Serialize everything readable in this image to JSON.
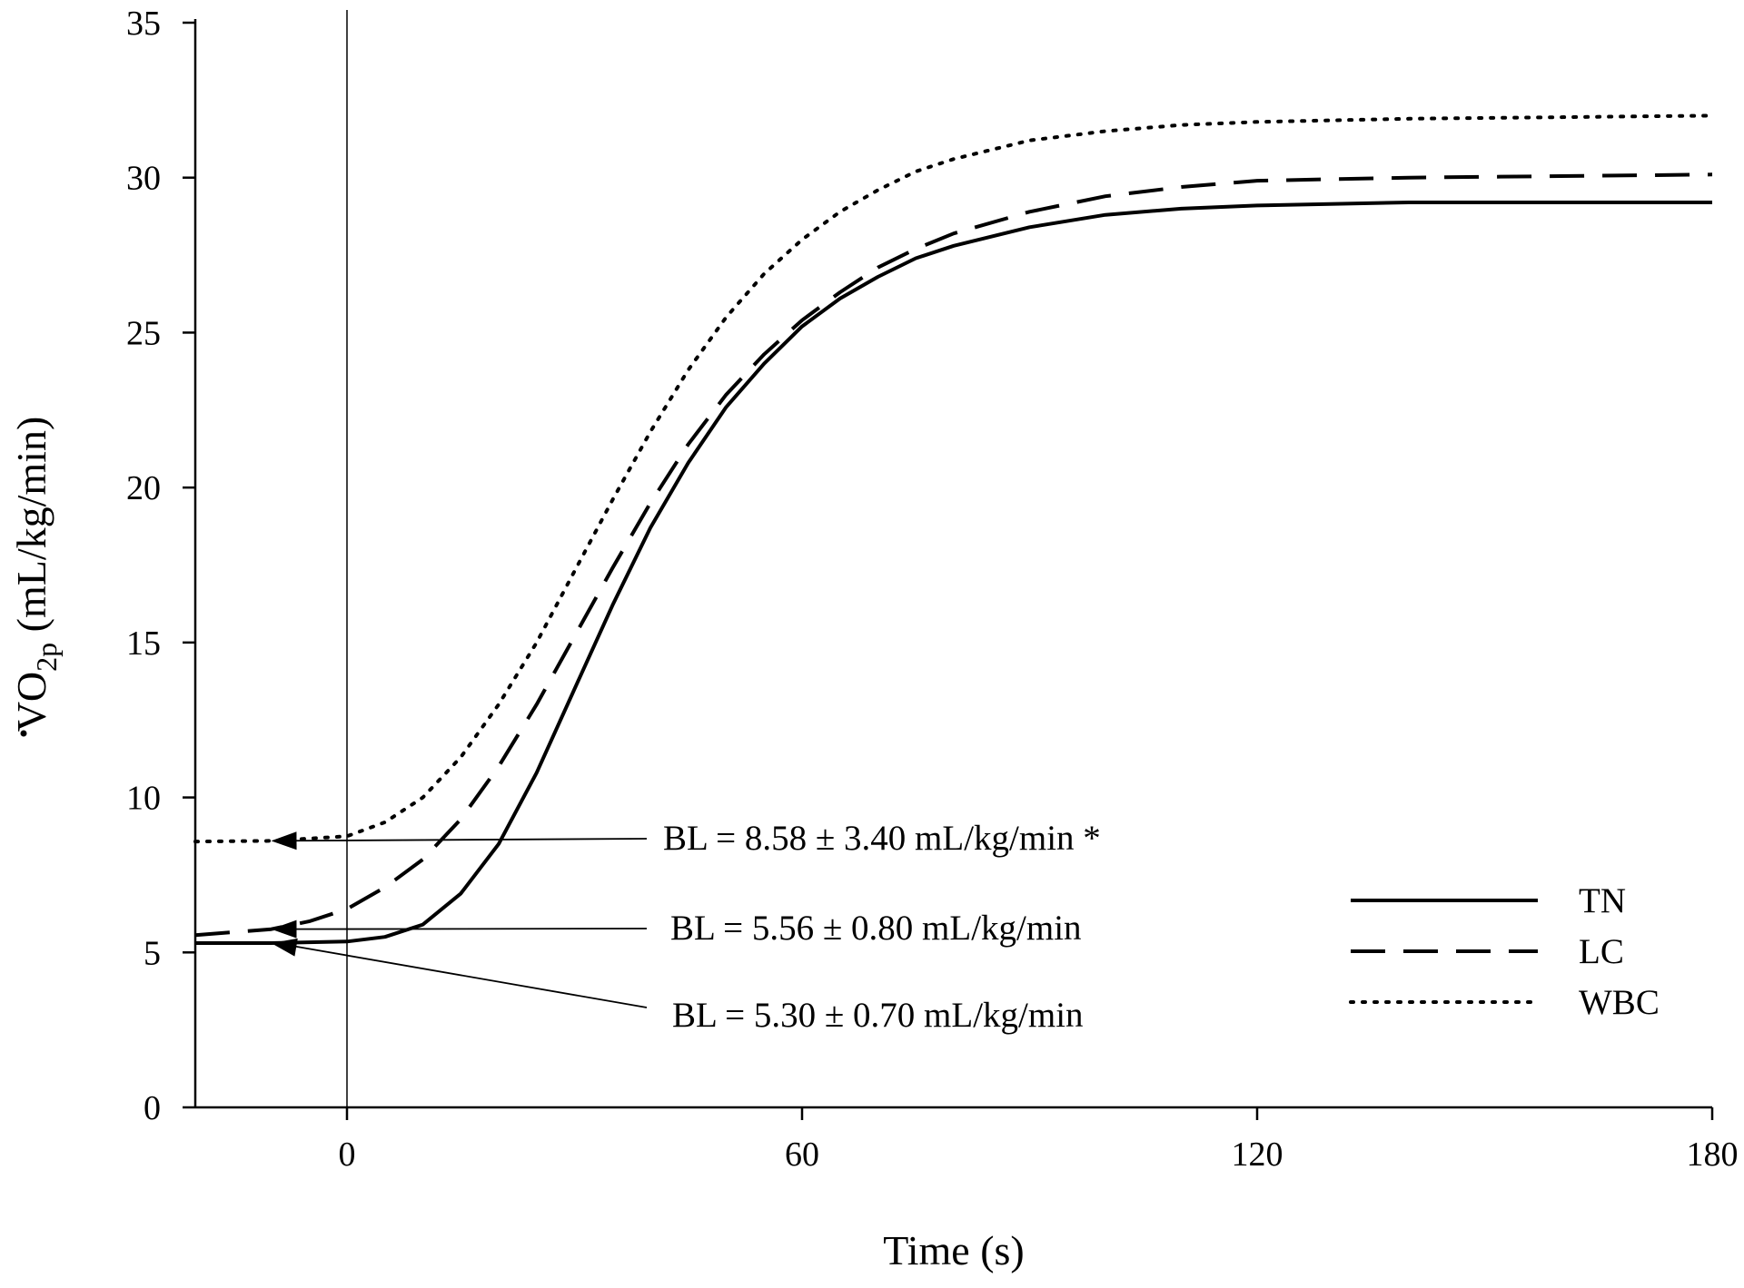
{
  "chart_data": {
    "type": "line",
    "title": "",
    "xlabel": "Time (s)",
    "ylabel": {
      "main": "VO",
      "sub": "2p",
      "unit": " (mL/kg/min)"
    },
    "xlim": [
      -20,
      180
    ],
    "ylim": [
      0,
      35
    ],
    "xticks": [
      0,
      60,
      120,
      180
    ],
    "yticks": [
      0,
      5,
      10,
      15,
      20,
      25,
      30,
      35
    ],
    "grid": false,
    "vline_x": 0,
    "legend_position": "bottom-right",
    "series": [
      {
        "name": "TN",
        "style": "solid",
        "points": [
          [
            -20,
            5.3
          ],
          [
            -10,
            5.3
          ],
          [
            0,
            5.35
          ],
          [
            5,
            5.5
          ],
          [
            10,
            5.9
          ],
          [
            15,
            6.9
          ],
          [
            20,
            8.5
          ],
          [
            25,
            10.8
          ],
          [
            30,
            13.5
          ],
          [
            35,
            16.2
          ],
          [
            40,
            18.7
          ],
          [
            45,
            20.8
          ],
          [
            50,
            22.6
          ],
          [
            55,
            24.0
          ],
          [
            60,
            25.2
          ],
          [
            65,
            26.1
          ],
          [
            70,
            26.8
          ],
          [
            75,
            27.4
          ],
          [
            80,
            27.8
          ],
          [
            90,
            28.4
          ],
          [
            100,
            28.8
          ],
          [
            110,
            29.0
          ],
          [
            120,
            29.1
          ],
          [
            140,
            29.2
          ],
          [
            160,
            29.2
          ],
          [
            180,
            29.2
          ]
        ]
      },
      {
        "name": "LC",
        "style": "dashed",
        "points": [
          [
            -20,
            5.56
          ],
          [
            -10,
            5.75
          ],
          [
            -5,
            6.0
          ],
          [
            0,
            6.4
          ],
          [
            5,
            7.1
          ],
          [
            10,
            8.0
          ],
          [
            15,
            9.3
          ],
          [
            20,
            11.0
          ],
          [
            25,
            13.0
          ],
          [
            30,
            15.2
          ],
          [
            35,
            17.4
          ],
          [
            40,
            19.5
          ],
          [
            45,
            21.4
          ],
          [
            50,
            23.0
          ],
          [
            55,
            24.3
          ],
          [
            60,
            25.4
          ],
          [
            65,
            26.3
          ],
          [
            70,
            27.1
          ],
          [
            75,
            27.7
          ],
          [
            80,
            28.2
          ],
          [
            90,
            28.9
          ],
          [
            100,
            29.4
          ],
          [
            110,
            29.7
          ],
          [
            120,
            29.9
          ],
          [
            140,
            30.0
          ],
          [
            160,
            30.05
          ],
          [
            180,
            30.1
          ]
        ]
      },
      {
        "name": "WBC",
        "style": "dotted",
        "points": [
          [
            -20,
            8.58
          ],
          [
            -10,
            8.6
          ],
          [
            0,
            8.75
          ],
          [
            5,
            9.2
          ],
          [
            10,
            10.0
          ],
          [
            15,
            11.3
          ],
          [
            20,
            13.0
          ],
          [
            25,
            15.0
          ],
          [
            30,
            17.3
          ],
          [
            35,
            19.6
          ],
          [
            40,
            21.8
          ],
          [
            45,
            23.8
          ],
          [
            50,
            25.5
          ],
          [
            55,
            26.9
          ],
          [
            60,
            28.0
          ],
          [
            65,
            28.9
          ],
          [
            70,
            29.6
          ],
          [
            75,
            30.2
          ],
          [
            80,
            30.6
          ],
          [
            90,
            31.2
          ],
          [
            100,
            31.5
          ],
          [
            110,
            31.7
          ],
          [
            120,
            31.8
          ],
          [
            140,
            31.9
          ],
          [
            160,
            31.95
          ],
          [
            180,
            32.0
          ]
        ]
      }
    ],
    "annotations": [
      {
        "text": "BL = 8.58 ± 3.40 mL/kg/min *",
        "target": [
          -10,
          8.6
        ],
        "series": "WBC"
      },
      {
        "text": "BL = 5.56 ± 0.80 mL/kg/min",
        "target": [
          -10,
          5.75
        ],
        "series": "LC"
      },
      {
        "text": "BL = 5.30 ± 0.70 mL/kg/min",
        "target": [
          -10,
          5.3
        ],
        "series": "TN"
      }
    ]
  }
}
